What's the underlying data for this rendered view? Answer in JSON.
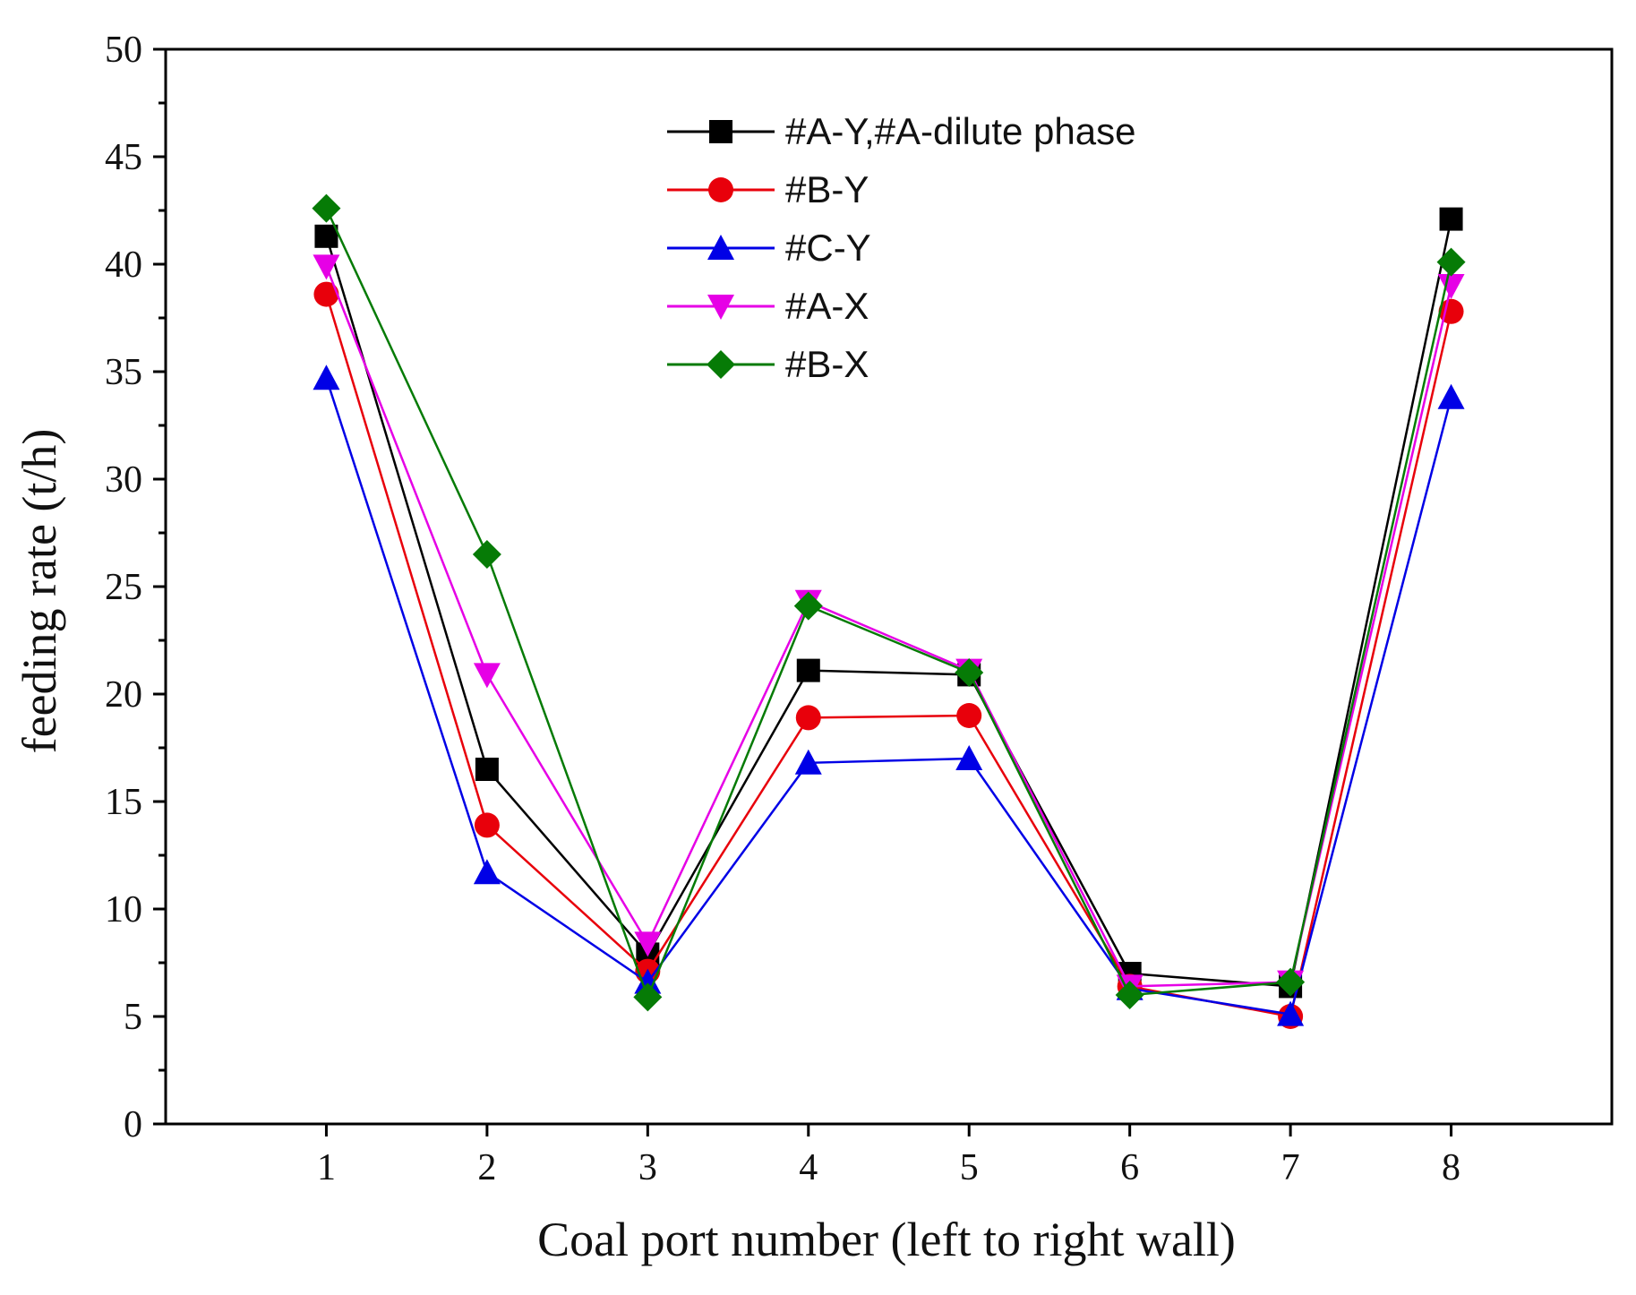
{
  "chart_data": {
    "type": "line",
    "title": "",
    "xlabel": "Coal port number (left to right wall)",
    "ylabel": "feeding rate (t/h)",
    "x": [
      1,
      2,
      3,
      4,
      5,
      6,
      7,
      8
    ],
    "x_tick_labels": [
      "1",
      "2",
      "3",
      "4",
      "5",
      "6",
      "7",
      "8"
    ],
    "xlim": [
      0,
      9
    ],
    "ylim": [
      0,
      50
    ],
    "y_ticks": [
      0,
      5,
      10,
      15,
      20,
      25,
      30,
      35,
      40,
      45,
      50
    ],
    "y_tick_labels": [
      "0",
      "5",
      "10",
      "15",
      "20",
      "25",
      "30",
      "35",
      "40",
      "45",
      "50"
    ],
    "grid": false,
    "legend_position": "top-center",
    "series": [
      {
        "name": "#A-Y,#A-dilute phase",
        "color": "#000000",
        "marker": "square",
        "values": [
          41.3,
          16.5,
          7.9,
          21.1,
          20.9,
          7.0,
          6.4,
          42.1
        ]
      },
      {
        "name": "#B-Y",
        "color": "#e8000b",
        "marker": "circle",
        "values": [
          38.6,
          13.9,
          7.1,
          18.9,
          19.0,
          6.4,
          5.0,
          37.8
        ]
      },
      {
        "name": "#C-Y",
        "color": "#0000e6",
        "marker": "triangle-up",
        "values": [
          34.7,
          11.7,
          6.6,
          16.8,
          17.0,
          6.3,
          5.1,
          33.8
        ]
      },
      {
        "name": "#A-X",
        "color": "#e600e6",
        "marker": "triangle-down",
        "values": [
          39.9,
          20.9,
          8.4,
          24.3,
          21.1,
          6.4,
          6.6,
          39.0
        ]
      },
      {
        "name": "#B-X",
        "color": "#067b06",
        "marker": "diamond",
        "values": [
          42.6,
          26.5,
          5.9,
          24.1,
          21.0,
          6.0,
          6.6,
          40.1
        ]
      }
    ]
  }
}
